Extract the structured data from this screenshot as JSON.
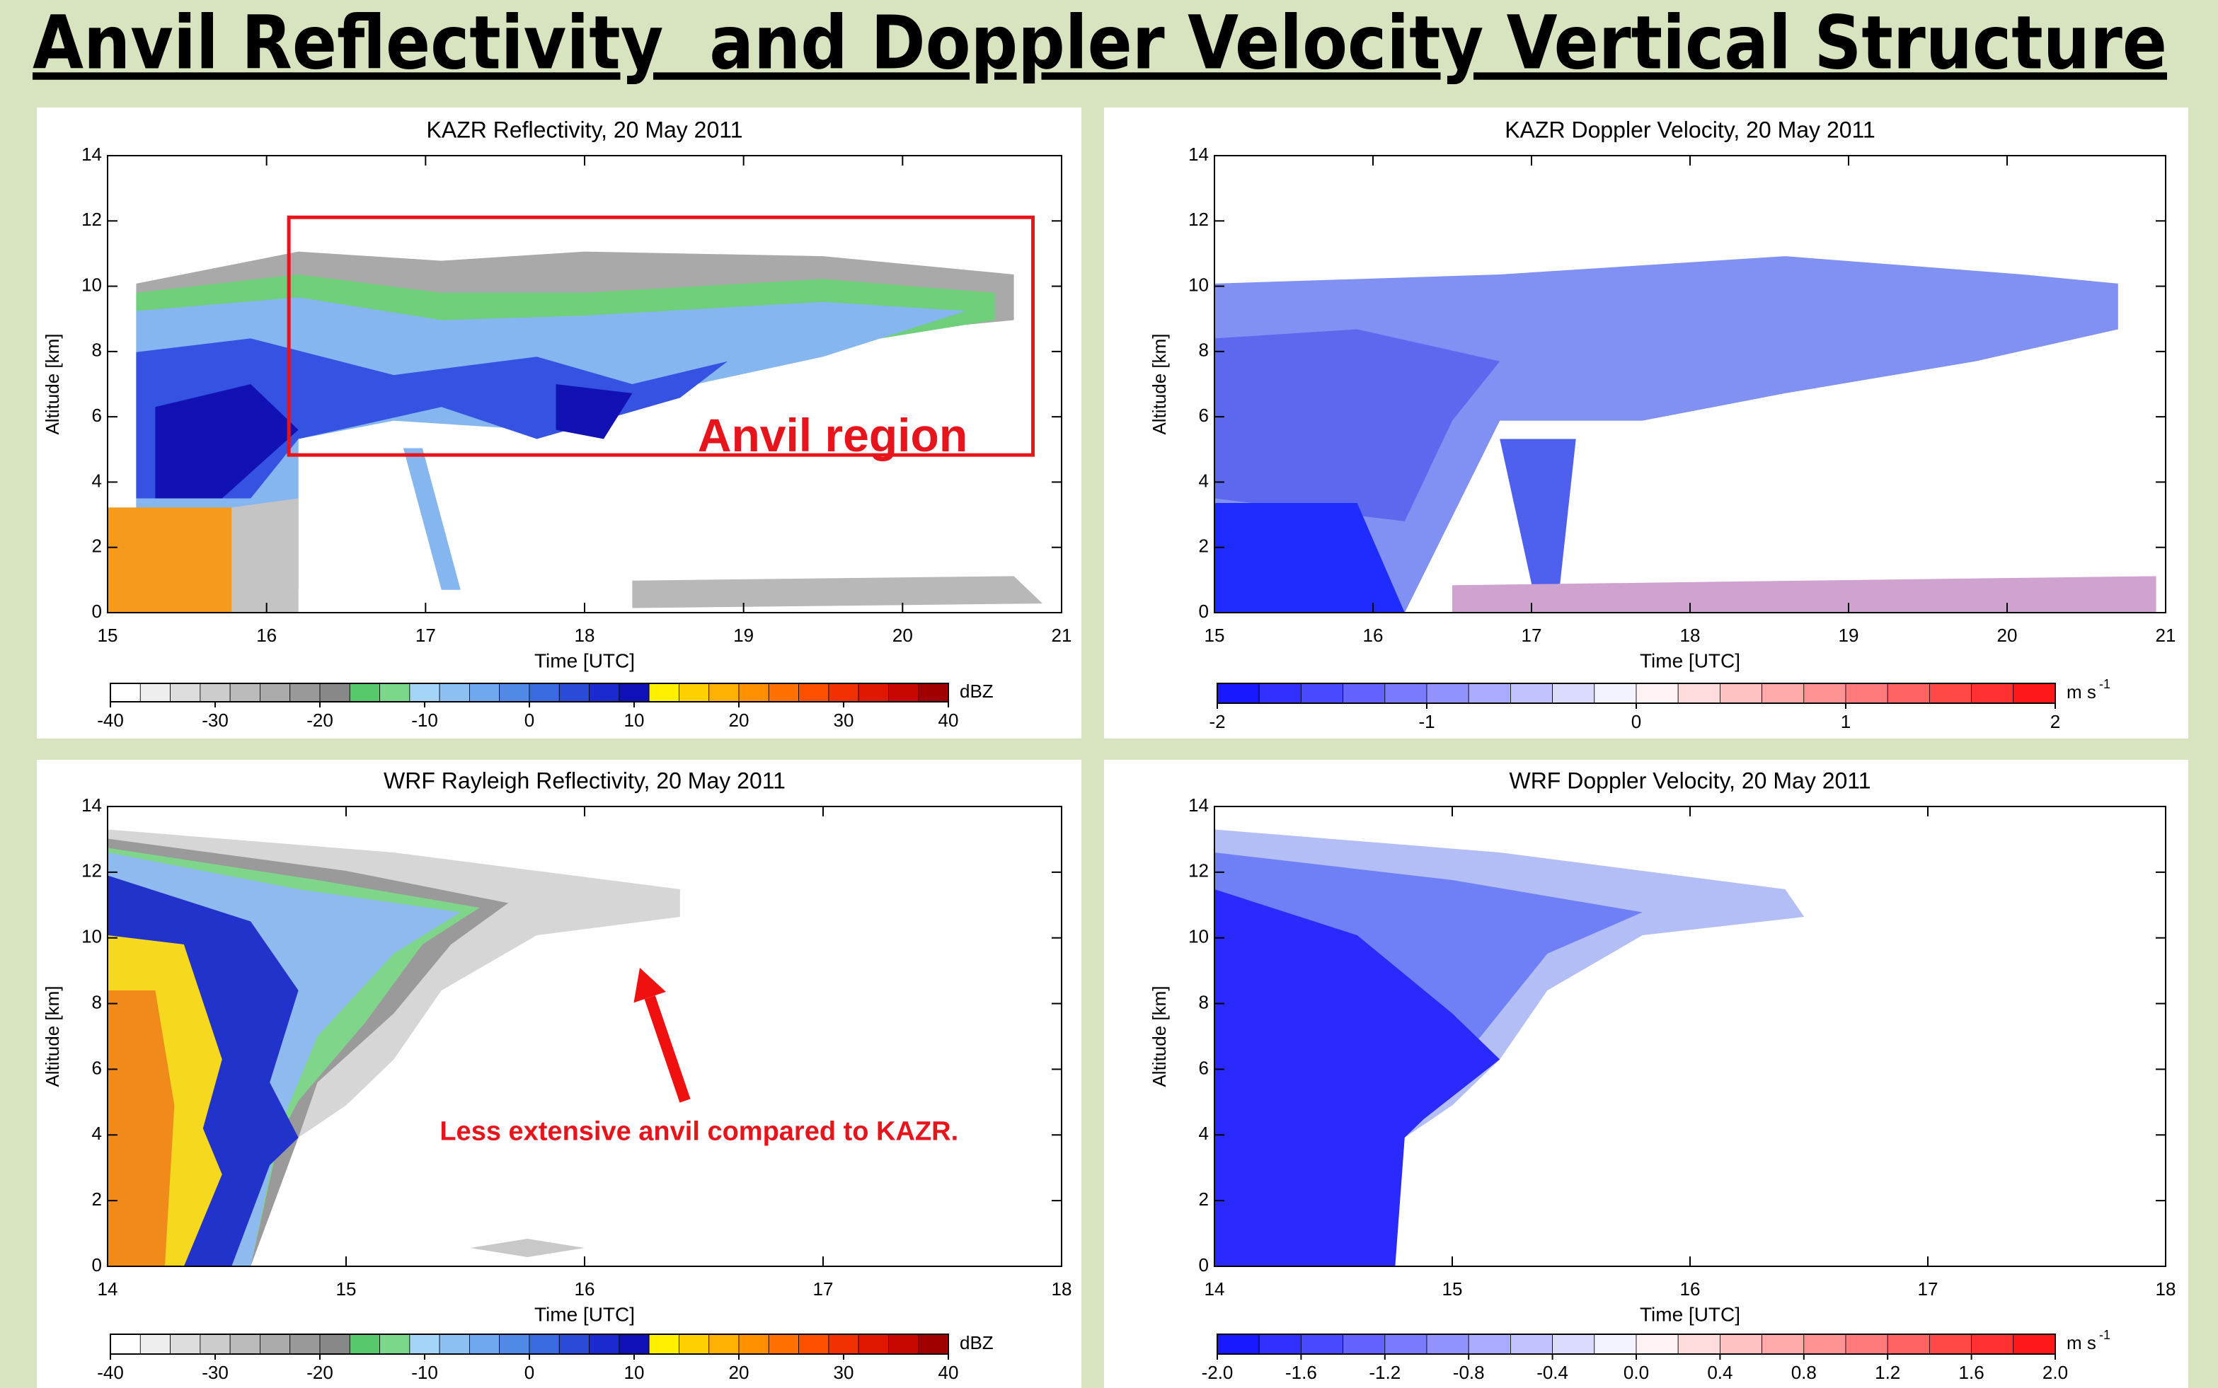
{
  "title": "Anvil Reflectivity  and Doppler Velocity Vertical Structure",
  "chart_data": [
    {
      "type": "heatmap",
      "title": "KAZR Reflectivity, 20 May 2011",
      "x_label": "Time [UTC]",
      "y_label": "Altitude [km]",
      "xlim": [
        15,
        21
      ],
      "xticks": [
        15,
        16,
        17,
        18,
        19,
        20,
        21
      ],
      "ylim": [
        0,
        14
      ],
      "yticks": [
        0,
        2,
        4,
        6,
        8,
        10,
        12,
        14
      ],
      "colorbar": {
        "label": "dBZ",
        "lim": [
          -40,
          40
        ],
        "ticks": [
          -40,
          -30,
          -20,
          -10,
          0,
          10,
          20,
          30,
          40
        ],
        "colormap": "reflectivity"
      },
      "annotation": "Anvil region"
    },
    {
      "type": "heatmap",
      "title": "KAZR Doppler Velocity, 20 May 2011",
      "x_label": "Time [UTC]",
      "y_label": "Altitude [km]",
      "xlim": [
        15,
        21
      ],
      "xticks": [
        15,
        16,
        17,
        18,
        19,
        20,
        21
      ],
      "ylim": [
        0,
        14
      ],
      "yticks": [
        0,
        2,
        4,
        6,
        8,
        10,
        12,
        14
      ],
      "colorbar": {
        "label": "m s",
        "label_sup": "-1",
        "lim": [
          -2,
          2
        ],
        "ticks": [
          -2,
          -1,
          0,
          1,
          2
        ],
        "colormap": "velocity"
      }
    },
    {
      "type": "heatmap",
      "title": "WRF Rayleigh Reflectivity, 20 May 2011",
      "x_label": "Time [UTC]",
      "y_label": "Altitude [km]",
      "xlim": [
        14,
        18
      ],
      "xticks": [
        14,
        15,
        16,
        17,
        18
      ],
      "ylim": [
        0,
        14
      ],
      "yticks": [
        0,
        2,
        4,
        6,
        8,
        10,
        12,
        14
      ],
      "colorbar": {
        "label": "dBZ",
        "lim": [
          -40,
          40
        ],
        "ticks": [
          -40,
          -30,
          -20,
          -10,
          0,
          10,
          20,
          30,
          40
        ],
        "colormap": "reflectivity"
      },
      "annotation": "Less extensive anvil compared to KAZR."
    },
    {
      "type": "heatmap",
      "title": "WRF Doppler Velocity, 20 May 2011",
      "x_label": "Time [UTC]",
      "y_label": "Altitude [km]",
      "xlim": [
        14,
        18
      ],
      "xticks": [
        14,
        15,
        16,
        17,
        18
      ],
      "ylim": [
        0,
        14
      ],
      "yticks": [
        0,
        2,
        4,
        6,
        8,
        10,
        12,
        14
      ],
      "colorbar": {
        "label": "m s",
        "label_sup": "-1",
        "lim": [
          -2,
          2
        ],
        "ticks": [
          {
            "value": -2,
            "label": "-2.0"
          },
          -1.6,
          -1.2,
          -0.8,
          -0.4,
          {
            "value": 0,
            "label": "0.0"
          },
          0.4,
          0.8,
          1.2,
          1.6,
          {
            "value": 2,
            "label": "2.0"
          }
        ],
        "colormap": "velocity"
      }
    }
  ]
}
